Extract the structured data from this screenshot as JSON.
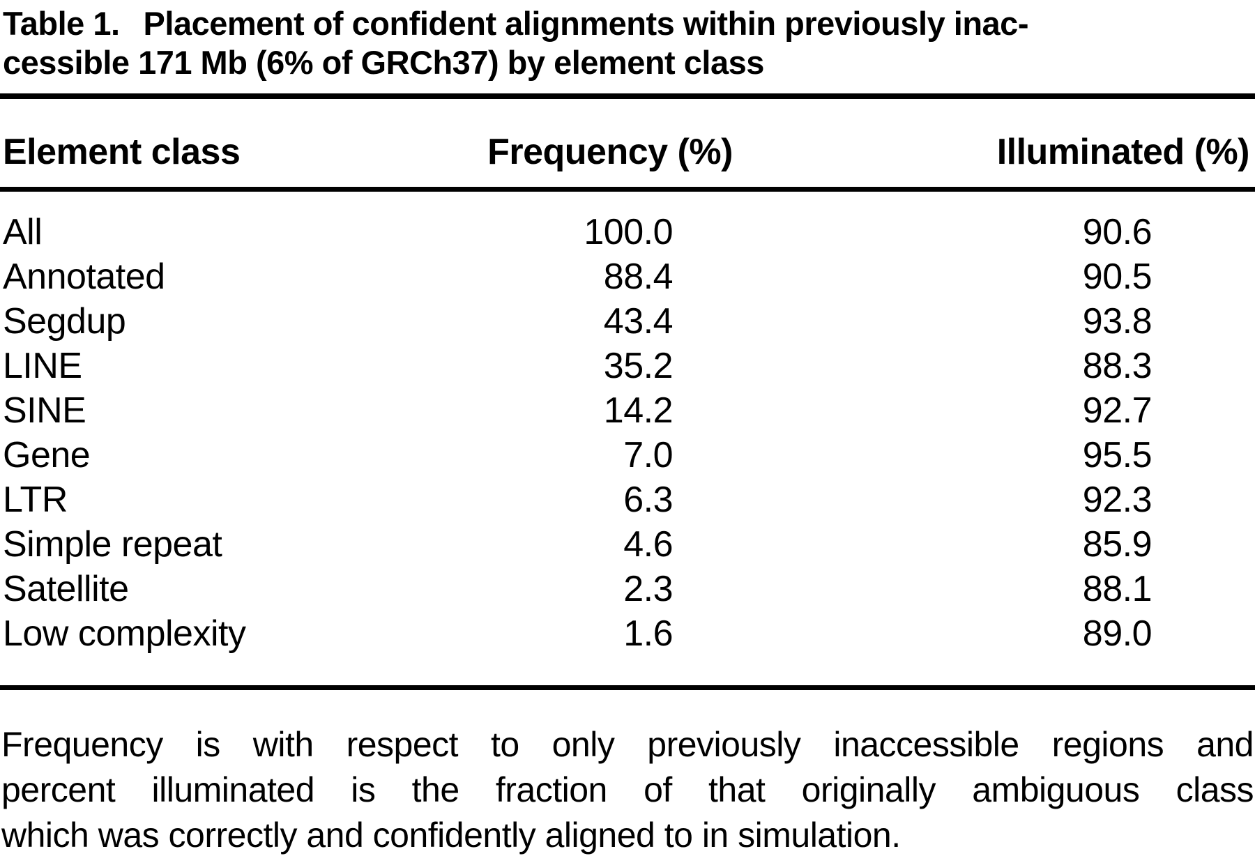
{
  "title": {
    "number": "Table 1.",
    "line1_rest": "Placement of confident alignments within previously inac-",
    "line2": "cessible 171 Mb (6% of GRCh37) by element class"
  },
  "table": {
    "columns": [
      "Element class",
      "Frequency (%)",
      "Illuminated (%)"
    ],
    "rows": [
      {
        "element_class": "All",
        "frequency": "100.0",
        "illuminated": "90.6"
      },
      {
        "element_class": "Annotated",
        "frequency": "88.4",
        "illuminated": "90.5"
      },
      {
        "element_class": "Segdup",
        "frequency": "43.4",
        "illuminated": "93.8"
      },
      {
        "element_class": "LINE",
        "frequency": "35.2",
        "illuminated": "88.3"
      },
      {
        "element_class": "SINE",
        "frequency": "14.2",
        "illuminated": "92.7"
      },
      {
        "element_class": "Gene",
        "frequency": "7.0",
        "illuminated": "95.5"
      },
      {
        "element_class": "LTR",
        "frequency": "6.3",
        "illuminated": "92.3"
      },
      {
        "element_class": "Simple repeat",
        "frequency": "4.6",
        "illuminated": "85.9"
      },
      {
        "element_class": "Satellite",
        "frequency": "2.3",
        "illuminated": "88.1"
      },
      {
        "element_class": "Low complexity",
        "frequency": "1.6",
        "illuminated": "89.0"
      }
    ]
  },
  "footnote": {
    "line1": "Frequency is with respect to only previously inaccessible regions and",
    "line2": "percent illuminated is the fraction of that originally ambiguous class",
    "line3": "which was correctly and confidently aligned to in simulation."
  },
  "colors": {
    "text": "#000000",
    "background": "#ffffff",
    "rule": "#000000"
  }
}
